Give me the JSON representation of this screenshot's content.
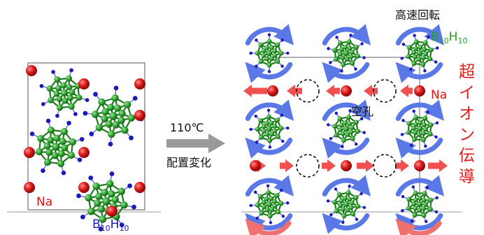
{
  "left_panel": {
    "na_label": "Na",
    "b10h10_label": {
      "b": "B",
      "b_sub": "10",
      "h": "H",
      "h_sub": "10"
    }
  },
  "transition": {
    "temperature": "110℃",
    "caption": "配置変化"
  },
  "right_panel": {
    "fast_rotation": "高速回転",
    "b10h10_label": {
      "b": "B",
      "b_sub": "10",
      "h": "H",
      "h_sub": "10"
    },
    "na_label": "Na",
    "vacancy_label": "空孔",
    "superionic_vertical": "超イオン伝導"
  },
  "colors": {
    "sodium": "#d81818",
    "boron": "#2aa02a",
    "hydrogen": "#1a1ab8",
    "arrow_red": "#f05050",
    "arrow_blue": "#5a78e6",
    "arrow_gray": "#9a9a9a",
    "vertical_text": "#e02020"
  }
}
